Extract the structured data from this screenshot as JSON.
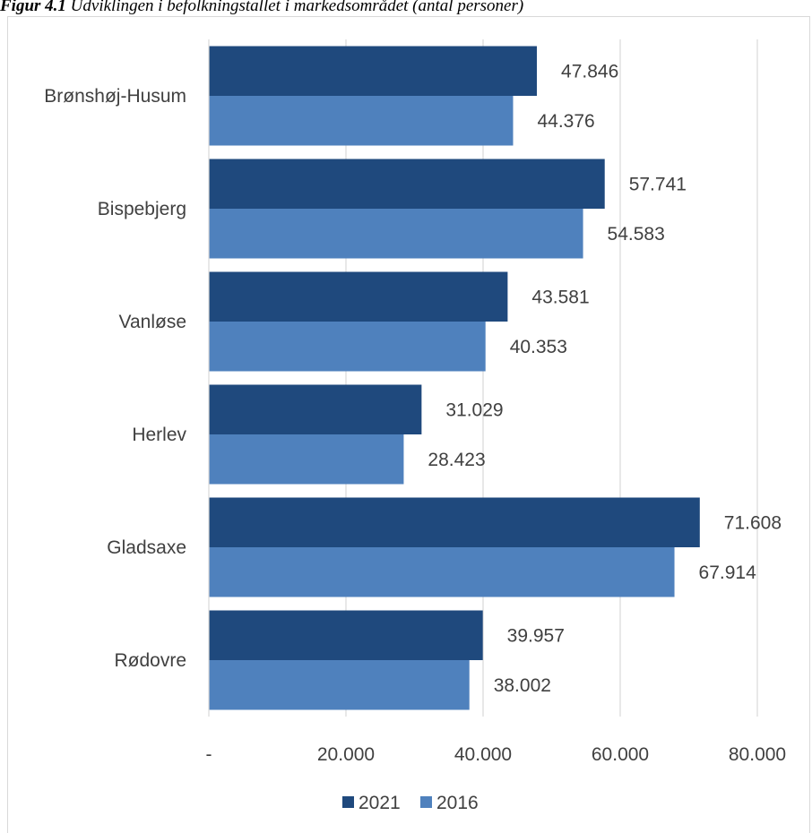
{
  "caption": {
    "prefix": "Figur 4.1",
    "text": " Udviklingen i befolkningstallet i markedsområdet (antal personer)"
  },
  "chart_data": {
    "type": "bar",
    "orientation": "horizontal",
    "categories": [
      "Brønshøj-Husum",
      "Bispebjerg",
      "Vanløse",
      "Herlev",
      "Gladsaxe",
      "Rødovre"
    ],
    "series": [
      {
        "name": "2021",
        "color": "#1f497d",
        "values": [
          47846,
          57741,
          43581,
          31029,
          71608,
          39957
        ],
        "labels": [
          "47.846",
          "57.741",
          "43.581",
          "31.029",
          "71.608",
          "39.957"
        ]
      },
      {
        "name": "2016",
        "color": "#4f81bd",
        "values": [
          44376,
          54583,
          40353,
          28423,
          67914,
          38002
        ],
        "labels": [
          "44.376",
          "54.583",
          "40.353",
          "28.423",
          "67.914",
          "38.002"
        ]
      }
    ],
    "xlim": [
      0,
      80000
    ],
    "xticks": [
      0,
      20000,
      40000,
      60000,
      80000
    ],
    "xtick_labels": [
      "-",
      "20.000",
      "40.000",
      "60.000",
      "80.000"
    ],
    "grid": true,
    "legend_position": "bottom"
  }
}
